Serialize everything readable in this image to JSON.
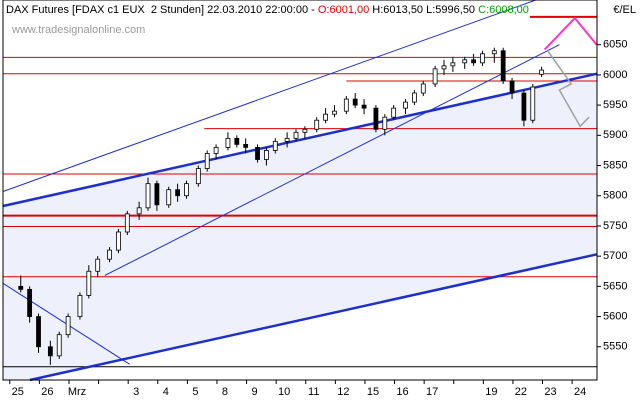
{
  "header": {
    "instrument": "DAX Futures [FDAX c1 EUX  2 Stunden] 22.03.2010 22:00:00 - ",
    "open": "O:6001,00",
    "high": " H:6013,50",
    "low": " L:5996,50",
    "close": " C:6008,00"
  },
  "watermark": "www.tradesignalonline.com",
  "chart_data": {
    "type": "candlestick",
    "y_unit": "€/EL",
    "categories": [
      "25",
      "26",
      "Mrz",
      null,
      "3",
      "4",
      "5",
      "8",
      "9",
      "10",
      "11",
      "12",
      "15",
      "16",
      "17",
      null,
      "19",
      "22",
      "23",
      "24"
    ],
    "xlim": [
      -0.5,
      19.57
    ],
    "ylim": [
      5495,
      6124
    ],
    "yticks": [
      5550,
      5600,
      5650,
      5700,
      5750,
      5800,
      5850,
      5900,
      5950,
      6000,
      6050
    ],
    "up_color": "#ffffff",
    "down_color": "#000000",
    "x": [
      0.1,
      0.4,
      0.7,
      1.1,
      1.4,
      1.7,
      2.1,
      2.4,
      2.7,
      3.1,
      3.4,
      3.7,
      4.1,
      4.4,
      4.7,
      5.1,
      5.4,
      5.7,
      6.1,
      6.4,
      6.7,
      7.1,
      7.4,
      7.7,
      8.1,
      8.4,
      8.7,
      9.1,
      9.4,
      9.7,
      10.1,
      10.4,
      10.7,
      11.1,
      11.4,
      11.7,
      12.1,
      12.4,
      12.7,
      13.1,
      13.4,
      13.7,
      14.1,
      14.4,
      14.7,
      15.1,
      15.4,
      15.7,
      16.1,
      16.4,
      16.7,
      17.1,
      17.4,
      17.7
    ],
    "open": [
      5650,
      5645,
      5600,
      5550,
      5535,
      5570,
      5600,
      5635,
      5675,
      5695,
      5710,
      5740,
      5770,
      5780,
      5820,
      5785,
      5810,
      5800,
      5820,
      5845,
      5870,
      5880,
      5895,
      5885,
      5880,
      5860,
      5875,
      5890,
      5895,
      5905,
      5910,
      5925,
      5935,
      5940,
      5960,
      5950,
      5945,
      5910,
      5930,
      5945,
      5955,
      5970,
      5985,
      6010,
      6015,
      6020,
      6025,
      6020,
      6035,
      6040,
      5990,
      5970,
      5925,
      6001
    ],
    "high": [
      5668,
      5650,
      5605,
      5560,
      5575,
      5605,
      5640,
      5685,
      5700,
      5715,
      5745,
      5775,
      5790,
      5830,
      5825,
      5815,
      5820,
      5825,
      5850,
      5875,
      5885,
      5905,
      5900,
      5895,
      5885,
      5880,
      5895,
      5905,
      5910,
      5915,
      5930,
      5945,
      5950,
      5965,
      5970,
      5960,
      5950,
      5935,
      5950,
      5960,
      5975,
      5990,
      6015,
      6025,
      6030,
      6030,
      6035,
      6040,
      6045,
      6045,
      5995,
      5975,
      5985,
      6013.5
    ],
    "low": [
      5640,
      5590,
      5540,
      5520,
      5530,
      5565,
      5595,
      5630,
      5665,
      5690,
      5705,
      5735,
      5760,
      5775,
      5775,
      5780,
      5790,
      5795,
      5815,
      5840,
      5860,
      5875,
      5880,
      5870,
      5855,
      5850,
      5870,
      5880,
      5890,
      5895,
      5905,
      5920,
      5930,
      5935,
      5945,
      5935,
      5905,
      5900,
      5925,
      5935,
      5950,
      5965,
      5980,
      6000,
      6005,
      6010,
      6015,
      6015,
      6020,
      5985,
      5960,
      5915,
      5920,
      5996.5
    ],
    "close": [
      5645,
      5600,
      5550,
      5535,
      5570,
      5600,
      5635,
      5675,
      5695,
      5710,
      5740,
      5770,
      5780,
      5820,
      5785,
      5810,
      5800,
      5820,
      5845,
      5870,
      5880,
      5895,
      5885,
      5880,
      5860,
      5875,
      5890,
      5895,
      5905,
      5910,
      5925,
      5935,
      5940,
      5960,
      5950,
      5945,
      5910,
      5930,
      5945,
      5955,
      5970,
      5985,
      6010,
      6015,
      6020,
      6025,
      6020,
      6035,
      6040,
      5990,
      5970,
      5925,
      5980,
      6008
    ],
    "levels": [
      {
        "value": 6096,
        "from": 17.3,
        "color": "#e00000",
        "width": 2
      },
      {
        "value": 6029,
        "from": -0.5,
        "color": "#e00000",
        "width": 1
      },
      {
        "value": 6002,
        "from": -0.5,
        "color": "#e00000",
        "width": 1
      },
      {
        "value": 5990,
        "from": 11.1,
        "color": "#e00000",
        "width": 1
      },
      {
        "value": 5911,
        "from": 6.3,
        "color": "#e00000",
        "width": 1
      },
      {
        "value": 5836,
        "from": -0.5,
        "color": "#e00000",
        "width": 1
      },
      {
        "value": 5767,
        "from": -0.5,
        "color": "#e00000",
        "width": 2
      },
      {
        "value": 5749,
        "from": -0.5,
        "color": "#e00000",
        "width": 1
      },
      {
        "value": 5666,
        "from": -0.5,
        "color": "#e00000",
        "width": 1
      },
      {
        "value": 5517,
        "from": -0.5,
        "color": "#000000",
        "width": 1
      }
    ],
    "trendlines": [
      {
        "x": [
          -0.5,
          19.57
        ],
        "y": [
          5783,
          6002
        ],
        "color": "#1c2fd0",
        "width": 2.5
      },
      {
        "x": [
          0.41,
          19.57
        ],
        "y": [
          5495,
          5703
        ],
        "color": "#1c2fd0",
        "width": 2.5
      },
      {
        "x": [
          -0.5,
          17.5
        ],
        "y": [
          5807,
          6124
        ],
        "color": "#1c2fd0",
        "width": 1
      },
      {
        "x": [
          2.94,
          18.3
        ],
        "y": [
          5668,
          6050
        ],
        "color": "#1c2fd0",
        "width": 1
      },
      {
        "x": [
          -0.5,
          3.78
        ],
        "y": [
          5655,
          5521
        ],
        "color": "#1c2fd0",
        "width": 1
      },
      {
        "x": [
          17.8,
          18.82,
          19.56
        ],
        "y": [
          6042,
          6094,
          6050
        ],
        "color": "#ff33cc",
        "width": 2
      },
      {
        "x": [
          17.9,
          18.7,
          18.3,
          19.0,
          19.3
        ],
        "y": [
          6040,
          5985,
          5975,
          5915,
          5930
        ],
        "color": "#a0a0a0",
        "width": 1.5
      }
    ]
  }
}
